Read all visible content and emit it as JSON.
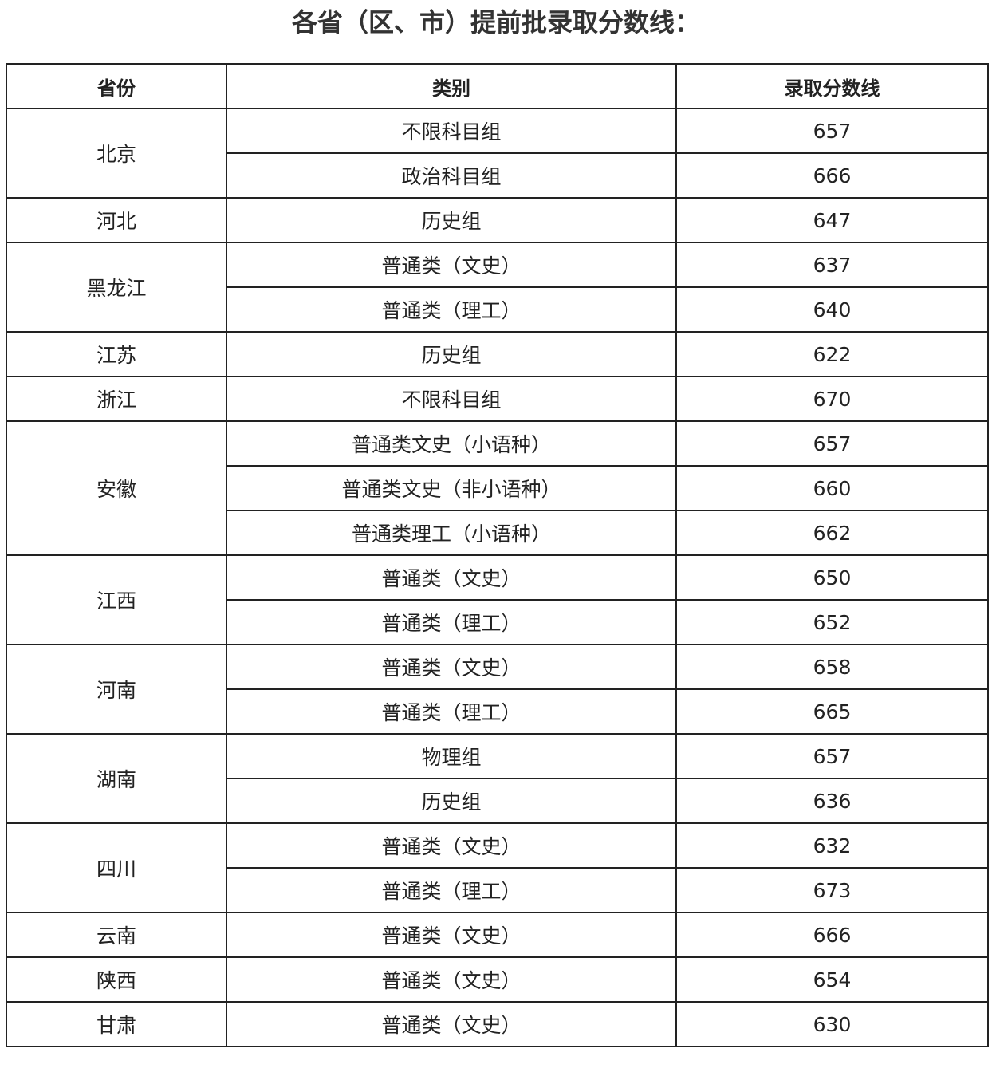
{
  "title": "各省（区、市）提前批录取分数线：",
  "table": {
    "headers": [
      "省份",
      "类别",
      "录取分数线"
    ],
    "groups": [
      {
        "province": "北京",
        "rows": [
          {
            "category": "不限科目组",
            "score": "657"
          },
          {
            "category": "政治科目组",
            "score": "666"
          }
        ]
      },
      {
        "province": "河北",
        "rows": [
          {
            "category": "历史组",
            "score": "647"
          }
        ]
      },
      {
        "province": "黑龙江",
        "rows": [
          {
            "category": "普通类（文史）",
            "score": "637"
          },
          {
            "category": "普通类（理工）",
            "score": "640"
          }
        ]
      },
      {
        "province": "江苏",
        "rows": [
          {
            "category": "历史组",
            "score": "622"
          }
        ]
      },
      {
        "province": "浙江",
        "rows": [
          {
            "category": "不限科目组",
            "score": "670"
          }
        ]
      },
      {
        "province": "安徽",
        "rows": [
          {
            "category": "普通类文史（小语种）",
            "score": "657"
          },
          {
            "category": "普通类文史（非小语种）",
            "score": "660"
          },
          {
            "category": "普通类理工（小语种）",
            "score": "662"
          }
        ]
      },
      {
        "province": "江西",
        "rows": [
          {
            "category": "普通类（文史）",
            "score": "650"
          },
          {
            "category": "普通类（理工）",
            "score": "652"
          }
        ]
      },
      {
        "province": "河南",
        "rows": [
          {
            "category": "普通类（文史）",
            "score": "658"
          },
          {
            "category": "普通类（理工）",
            "score": "665"
          }
        ]
      },
      {
        "province": "湖南",
        "rows": [
          {
            "category": "物理组",
            "score": "657"
          },
          {
            "category": "历史组",
            "score": "636"
          }
        ]
      },
      {
        "province": "四川",
        "rows": [
          {
            "category": "普通类（文史）",
            "score": "632"
          },
          {
            "category": "普通类（理工）",
            "score": "673"
          }
        ]
      },
      {
        "province": "云南",
        "rows": [
          {
            "category": "普通类（文史）",
            "score": "666"
          }
        ]
      },
      {
        "province": "陕西",
        "rows": [
          {
            "category": "普通类（文史）",
            "score": "654"
          }
        ]
      },
      {
        "province": "甘肃",
        "rows": [
          {
            "category": "普通类（文史）",
            "score": "630"
          }
        ]
      }
    ]
  }
}
